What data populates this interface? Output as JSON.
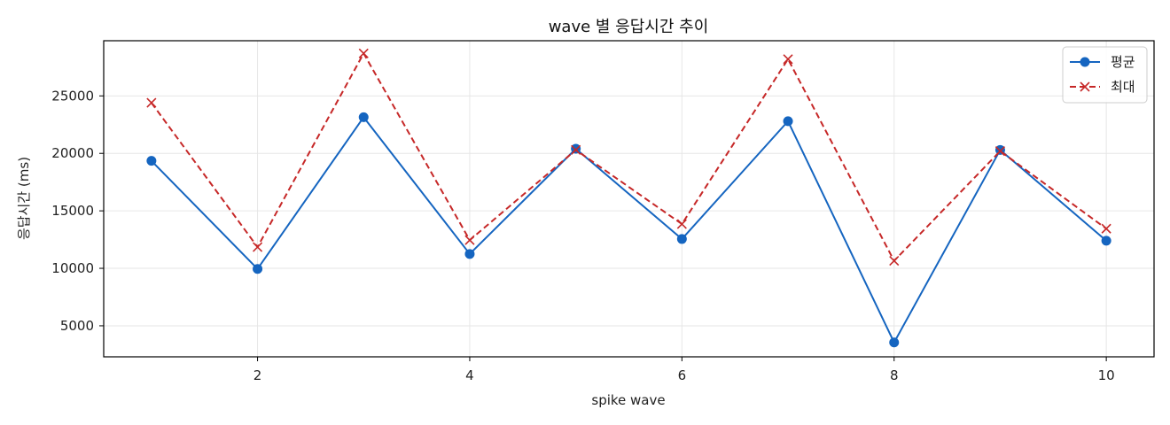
{
  "chart_data": {
    "type": "line",
    "title": "wave 별 응답시간 추이",
    "xlabel": "spike wave",
    "ylabel": "응답시간 (ms)",
    "x": [
      1,
      2,
      3,
      4,
      5,
      6,
      7,
      8,
      9,
      10
    ],
    "xticks": [
      2,
      4,
      6,
      8,
      10
    ],
    "yticks": [
      5000,
      10000,
      15000,
      20000,
      25000
    ],
    "xlim": [
      0.55,
      10.45
    ],
    "ylim": [
      2300,
      29800
    ],
    "grid": true,
    "legend_position": "top-right",
    "series": [
      {
        "name": "평균",
        "color": "#1565c0",
        "line_style": "solid",
        "marker": "circle",
        "values": [
          19350,
          9950,
          23150,
          11250,
          20400,
          12550,
          22800,
          3550,
          20300,
          12400
        ]
      },
      {
        "name": "최대",
        "color": "#c62828",
        "line_style": "dashed",
        "marker": "x",
        "values": [
          24400,
          11850,
          28700,
          12450,
          20300,
          13850,
          28200,
          10650,
          20200,
          13450
        ]
      }
    ]
  }
}
